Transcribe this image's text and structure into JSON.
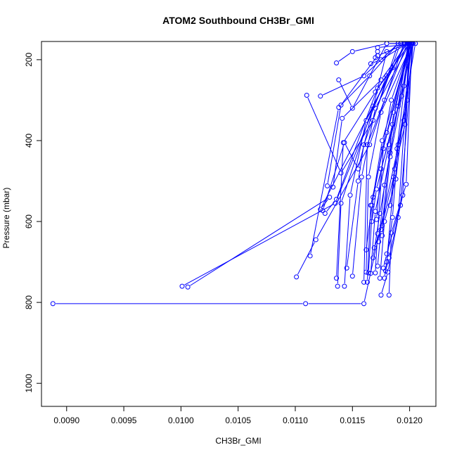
{
  "chart_data": {
    "type": "line",
    "title": "ATOM2 Southbound CH3Br_GMI",
    "xlabel": "CH3Br_GMI",
    "ylabel": "Pressure (mbar)",
    "xlim": [
      0.00878,
      0.01223
    ],
    "ylim": [
      1057,
      155
    ],
    "y_reversed": true,
    "grid": false,
    "x_ticks": [
      0.009,
      0.0095,
      0.01,
      0.0105,
      0.011,
      0.0115,
      0.012
    ],
    "x_tick_labels": [
      "0.0090",
      "0.0095",
      "0.0100",
      "0.0105",
      "0.0110",
      "0.0115",
      "0.0120"
    ],
    "y_ticks": [
      200,
      400,
      600,
      800,
      1000
    ],
    "y_tick_labels": [
      "200",
      "400",
      "600",
      "800",
      "1000"
    ],
    "colors": {
      "series": "#0000ff",
      "axis": "#000000"
    },
    "series": [
      {
        "x": [
          0.00888,
          0.01109,
          0.0116,
          0.01195
        ],
        "y": [
          803,
          803,
          803,
          350
        ]
      },
      {
        "x": [
          0.01001,
          0.01135,
          0.0118
        ],
        "y": [
          760,
          555,
          240
        ]
      },
      {
        "x": [
          0.01006,
          0.0113,
          0.01122,
          0.01185
        ],
        "y": [
          762,
          540,
          570,
          220
        ]
      },
      {
        "x": [
          0.01101,
          0.01118,
          0.01165,
          0.01195
        ],
        "y": [
          737,
          645,
          410,
          160
        ]
      },
      {
        "x": [
          0.0111,
          0.0114,
          0.01168,
          0.0119
        ],
        "y": [
          288,
          480,
          350,
          160
        ]
      },
      {
        "x": [
          0.01124,
          0.01143,
          0.01155,
          0.0118
        ],
        "y": [
          573,
          405,
          470,
          180
        ]
      },
      {
        "x": [
          0.01126,
          0.01136,
          0.01172,
          0.012
        ],
        "y": [
          580,
          545,
          270,
          160
        ]
      },
      {
        "x": [
          0.01122,
          0.0116,
          0.0119
        ],
        "y": [
          290,
          240,
          160
        ]
      },
      {
        "x": [
          0.01136,
          0.0115,
          0.0118,
          0.01195
        ],
        "y": [
          208,
          180,
          160,
          160
        ]
      },
      {
        "x": [
          0.01138,
          0.0115,
          0.0118,
          0.01195
        ],
        "y": [
          250,
          320,
          160,
          160
        ]
      },
      {
        "x": [
          0.01113,
          0.01138,
          0.01165,
          0.0119
        ],
        "y": [
          685,
          318,
          240,
          160
        ]
      },
      {
        "x": [
          0.01128,
          0.0114,
          0.01172,
          0.01198
        ],
        "y": [
          512,
          312,
          190,
          160
        ]
      },
      {
        "x": [
          0.01133,
          0.01141,
          0.01175,
          0.01198
        ],
        "y": [
          515,
          345,
          250,
          160
        ]
      },
      {
        "x": [
          0.01137,
          0.0114,
          0.01168,
          0.01197
        ],
        "y": [
          760,
          555,
          315,
          160
        ]
      },
      {
        "x": [
          0.01136,
          0.01142,
          0.0117,
          0.012
        ],
        "y": [
          740,
          405,
          280,
          160
        ]
      },
      {
        "x": [
          0.01143,
          0.01148,
          0.01162,
          0.01196
        ],
        "y": [
          760,
          535,
          350,
          160
        ]
      },
      {
        "x": [
          0.01145,
          0.01155,
          0.0116,
          0.01192
        ],
        "y": [
          715,
          500,
          410,
          160
        ]
      },
      {
        "x": [
          0.0115,
          0.01158,
          0.0117,
          0.012
        ],
        "y": [
          735,
          490,
          320,
          160
        ]
      },
      {
        "x": [
          0.0116,
          0.01163,
          0.01178,
          0.01198
        ],
        "y": [
          750,
          410,
          300,
          160
        ]
      },
      {
        "x": [
          0.01162,
          0.01164,
          0.01175,
          0.01202
        ],
        "y": [
          725,
          490,
          330,
          160
        ]
      },
      {
        "x": [
          0.01163,
          0.01166,
          0.0118,
          0.012
        ],
        "y": [
          750,
          560,
          380,
          160
        ]
      },
      {
        "x": [
          0.01164,
          0.01168,
          0.01176,
          0.01201
        ],
        "y": [
          727,
          540,
          400,
          160
        ]
      },
      {
        "x": [
          0.01166,
          0.0117,
          0.01182,
          0.01203
        ],
        "y": [
          728,
          575,
          410,
          160
        ]
      },
      {
        "x": [
          0.0117,
          0.01172,
          0.01177,
          0.012
        ],
        "y": [
          727,
          630,
          420,
          160
        ]
      },
      {
        "x": [
          0.01172,
          0.01175,
          0.01186,
          0.012
        ],
        "y": [
          710,
          620,
          490,
          160
        ]
      },
      {
        "x": [
          0.01174,
          0.01178,
          0.01188,
          0.01202
        ],
        "y": [
          740,
          600,
          495,
          160
        ]
      },
      {
        "x": [
          0.01175,
          0.01181,
          0.0119,
          0.012
        ],
        "y": [
          782,
          725,
          590,
          160
        ]
      },
      {
        "x": [
          0.01177,
          0.0118,
          0.01192,
          0.01203
        ],
        "y": [
          715,
          680,
          560,
          160
        ]
      },
      {
        "x": [
          0.01179,
          0.01182,
          0.01194,
          0.012
        ],
        "y": [
          722,
          690,
          535,
          160
        ]
      },
      {
        "x": [
          0.01182,
          0.01184,
          0.01197,
          0.01202
        ],
        "y": [
          782,
          628,
          508,
          160
        ]
      },
      {
        "x": [
          0.01178,
          0.01185,
          0.0119,
          0.01205
        ],
        "y": [
          740,
          590,
          410,
          160
        ]
      },
      {
        "x": [
          0.01168,
          0.01174,
          0.01183,
          0.01199
        ],
        "y": [
          690,
          580,
          430,
          160
        ]
      },
      {
        "x": [
          0.01169,
          0.01176,
          0.01186,
          0.01201
        ],
        "y": [
          665,
          610,
          330,
          160
        ]
      },
      {
        "x": [
          0.01173,
          0.01178,
          0.0119,
          0.01203
        ],
        "y": [
          650,
          510,
          315,
          160
        ]
      },
      {
        "x": [
          0.01176,
          0.01183,
          0.01195,
          0.01202
        ],
        "y": [
          635,
          440,
          265,
          160
        ]
      },
      {
        "x": [
          0.01167,
          0.01171,
          0.01185,
          0.01199
        ],
        "y": [
          600,
          520,
          360,
          160
        ]
      },
      {
        "x": [
          0.01171,
          0.01175,
          0.01193,
          0.012
        ],
        "y": [
          595,
          470,
          290,
          160
        ]
      },
      {
        "x": [
          0.01162,
          0.01167,
          0.01184,
          0.01201
        ],
        "y": [
          670,
          560,
          300,
          160
        ]
      },
      {
        "x": [
          0.0118,
          0.01187,
          0.01196,
          0.01201
        ],
        "y": [
          700,
          470,
          360,
          160
        ]
      },
      {
        "x": [
          0.01183,
          0.01189,
          0.01198,
          0.01203
        ],
        "y": [
          560,
          420,
          300,
          160
        ]
      },
      {
        "x": [
          0.0117,
          0.01172,
          0.01172,
          0.01205
        ],
        "y": [
          195,
          180,
          170,
          160
        ]
      },
      {
        "x": [
          0.01166,
          0.01175,
          0.01198
        ],
        "y": [
          210,
          200,
          160
        ]
      }
    ]
  }
}
